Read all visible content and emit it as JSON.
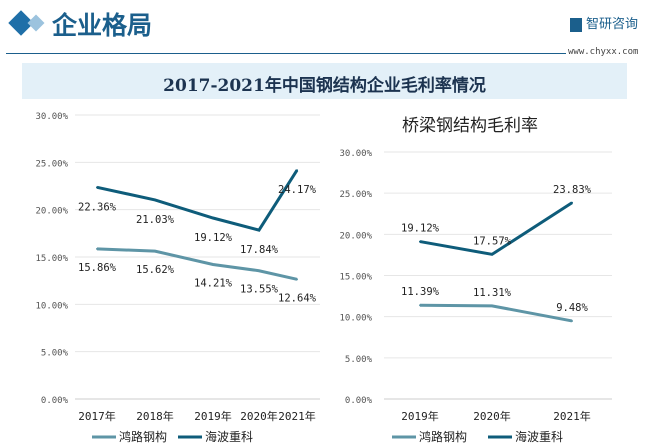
{
  "header": {
    "section_title": "企业格局",
    "logo_text": "智研咨询",
    "url": "www.chyxx.com",
    "main_title": "2017-2021年中国钢结构企业毛利率情况"
  },
  "colors": {
    "series_light": "#5e95a6",
    "series_dark": "#0e5c7a",
    "accent": "#1b5f8c"
  },
  "chart_data": [
    {
      "type": "line",
      "title": "",
      "categories": [
        "2017年",
        "2018年",
        "2019年",
        "2020年",
        "2021年"
      ],
      "ylim": [
        0,
        30
      ],
      "yticks": [
        "0.00%",
        "5.00%",
        "10.00%",
        "15.00%",
        "20.00%",
        "25.00%",
        "30.00%"
      ],
      "legend": "bottom",
      "grid": true,
      "series": [
        {
          "name": "鸿路钢构",
          "values": [
            15.86,
            15.62,
            14.21,
            13.55,
            12.64
          ],
          "labels": [
            "15.86%",
            "15.62%",
            "14.21%",
            "13.55%",
            "12.64%"
          ]
        },
        {
          "name": "海波重科",
          "values": [
            22.36,
            21.03,
            19.12,
            17.84,
            24.17
          ],
          "labels": [
            "22.36%",
            "21.03%",
            "19.12%",
            "17.84%",
            "24.17%"
          ]
        }
      ]
    },
    {
      "type": "line",
      "title": "桥梁钢结构毛利率",
      "categories": [
        "2019年",
        "2020年",
        "2021年"
      ],
      "ylim": [
        0,
        30
      ],
      "yticks": [
        "0.00%",
        "5.00%",
        "10.00%",
        "15.00%",
        "20.00%",
        "25.00%",
        "30.00%"
      ],
      "legend": "bottom",
      "grid": true,
      "series": [
        {
          "name": "鸿路钢构",
          "values": [
            11.39,
            11.31,
            9.48
          ],
          "labels": [
            "11.39%",
            "11.31%",
            "9.48%"
          ]
        },
        {
          "name": "海波重科",
          "values": [
            19.12,
            17.57,
            23.83
          ],
          "labels": [
            "19.12%",
            "17.57%",
            "23.83%"
          ]
        }
      ]
    }
  ]
}
